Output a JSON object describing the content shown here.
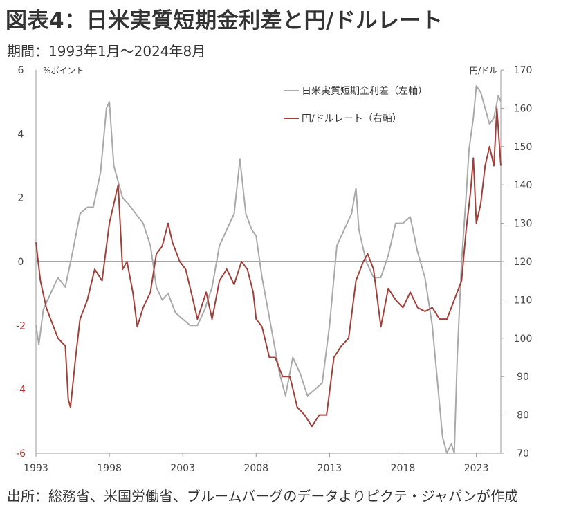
{
  "header": {
    "title": "図表4：日米実質短期金利差と円/ドルレート",
    "period": "期間：1993年1月～2024年8月"
  },
  "source": "出所：総務省、米国労働省、ブルームバーグのデータよりピクテ・ジャパンが作成",
  "colors": {
    "spread": "#a9a9a9",
    "rate": "#a0403a",
    "axis": "#999999",
    "zero": "#a6a6a6",
    "left_tick": "#444444",
    "left_tick_neg": "#b03030"
  },
  "chart_data": {
    "type": "line",
    "y_left_unit": "%ポイント",
    "y_right_unit": "円/ドル",
    "y_left_range": [
      -6,
      6
    ],
    "y_right_range": [
      70,
      170
    ],
    "y_left_ticks": [
      "6",
      "4",
      "2",
      "0",
      "-2",
      "-4",
      "-6"
    ],
    "y_right_ticks": [
      "170",
      "160",
      "150",
      "140",
      "130",
      "120",
      "110",
      "100",
      "90",
      "80",
      "70"
    ],
    "x_range": [
      1993.0,
      2024.67
    ],
    "x_ticks": [
      "1993",
      "1998",
      "2003",
      "2008",
      "2013",
      "2018",
      "2023"
    ],
    "legend": [
      "日米実質短期金利差（左軸）",
      "円/ドルレート（右軸）"
    ],
    "series": [
      {
        "name": "日米実質短期金利差（左軸）",
        "axis": "left",
        "x": [
          1993.0,
          1993.2,
          1993.5,
          1994.0,
          1994.5,
          1995.0,
          1995.5,
          1996.0,
          1996.5,
          1996.9,
          1997.4,
          1997.8,
          1998.0,
          1998.3,
          1998.6,
          1998.9,
          1999.3,
          1999.8,
          2000.3,
          2000.8,
          2001.2,
          2001.6,
          2002.0,
          2002.5,
          2003.0,
          2003.5,
          2004.0,
          2004.5,
          2005.0,
          2005.5,
          2006.0,
          2006.5,
          2006.9,
          2007.3,
          2007.7,
          2008.0,
          2008.4,
          2008.8,
          2009.2,
          2009.6,
          2010.0,
          2010.5,
          2011.0,
          2011.5,
          2012.0,
          2012.5,
          2013.0,
          2013.5,
          2014.0,
          2014.5,
          2014.8,
          2015.0,
          2015.5,
          2016.0,
          2016.5,
          2017.0,
          2017.5,
          2018.0,
          2018.5,
          2019.0,
          2019.5,
          2020.0,
          2020.3,
          2020.7,
          2021.0,
          2021.3,
          2021.5,
          2021.7,
          2022.0,
          2022.3,
          2022.5,
          2022.8,
          2023.0,
          2023.3,
          2023.6,
          2023.9,
          2024.2,
          2024.5,
          2024.67
        ],
        "values": [
          -2.0,
          -2.6,
          -1.5,
          -1.0,
          -0.5,
          -0.8,
          0.3,
          1.5,
          1.7,
          1.7,
          2.8,
          4.8,
          5.0,
          3.0,
          2.5,
          2.0,
          1.8,
          1.5,
          1.2,
          0.5,
          -0.8,
          -1.2,
          -1.0,
          -1.6,
          -1.8,
          -2.0,
          -2.0,
          -1.5,
          -0.8,
          0.5,
          1.0,
          1.5,
          3.2,
          1.5,
          1.0,
          0.8,
          -0.5,
          -1.5,
          -2.5,
          -3.5,
          -4.2,
          -3.0,
          -3.5,
          -4.2,
          -4.0,
          -3.8,
          -2.0,
          0.5,
          1.0,
          1.5,
          2.3,
          1.0,
          0.0,
          -0.5,
          -0.5,
          0.2,
          1.2,
          1.2,
          1.4,
          0.3,
          -0.5,
          -2.0,
          -3.5,
          -5.5,
          -6.0,
          -5.7,
          -6.0,
          -3.0,
          0.0,
          2.0,
          3.5,
          4.5,
          5.5,
          5.3,
          4.8,
          4.3,
          4.5,
          5.2,
          5.0
        ]
      },
      {
        "name": "円/ドルレート（右軸）",
        "axis": "right",
        "x": [
          1993.0,
          1993.3,
          1993.7,
          1994.0,
          1994.5,
          1995.0,
          1995.2,
          1995.35,
          1995.7,
          1996.0,
          1996.5,
          1997.0,
          1997.5,
          1998.0,
          1998.6,
          1998.9,
          1999.2,
          1999.6,
          1999.9,
          2000.3,
          2000.8,
          2001.2,
          2001.6,
          2002.0,
          2002.3,
          2002.8,
          2003.2,
          2003.7,
          2004.0,
          2004.6,
          2005.0,
          2005.5,
          2006.0,
          2006.5,
          2007.0,
          2007.4,
          2007.8,
          2008.0,
          2008.4,
          2008.9,
          2009.3,
          2009.8,
          2010.3,
          2010.8,
          2011.3,
          2011.8,
          2012.3,
          2012.8,
          2013.3,
          2013.8,
          2014.3,
          2014.8,
          2015.3,
          2015.6,
          2016.0,
          2016.5,
          2017.0,
          2017.5,
          2018.0,
          2018.5,
          2019.0,
          2019.5,
          2020.0,
          2020.5,
          2021.0,
          2021.5,
          2022.0,
          2022.3,
          2022.6,
          2022.8,
          2023.0,
          2023.3,
          2023.6,
          2023.9,
          2024.2,
          2024.4,
          2024.67
        ],
        "values": [
          125,
          115,
          108,
          105,
          100,
          98,
          84,
          82,
          95,
          105,
          110,
          118,
          115,
          130,
          140,
          118,
          120,
          112,
          103,
          108,
          112,
          122,
          124,
          130,
          125,
          120,
          118,
          110,
          105,
          112,
          105,
          115,
          118,
          114,
          120,
          118,
          112,
          105,
          103,
          95,
          95,
          90,
          90,
          82,
          80,
          77,
          80,
          80,
          95,
          98,
          100,
          115,
          120,
          122,
          118,
          103,
          113,
          110,
          108,
          112,
          108,
          107,
          108,
          105,
          105,
          110,
          115,
          128,
          138,
          147,
          130,
          135,
          145,
          150,
          145,
          160,
          145
        ]
      }
    ]
  }
}
